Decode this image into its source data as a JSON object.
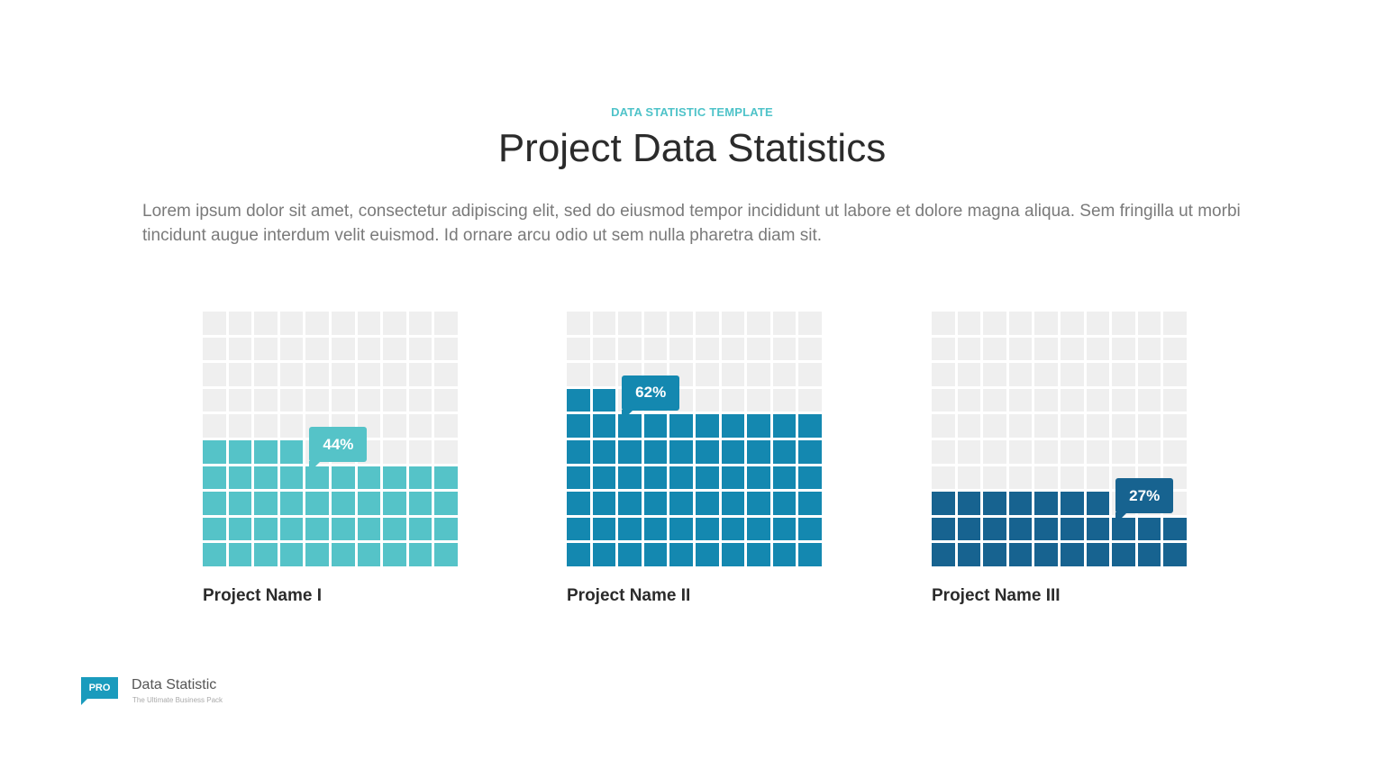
{
  "header": {
    "eyebrow": "DATA STATISTIC TEMPLATE",
    "title": "Project Data Statistics",
    "description": "Lorem ipsum dolor sit amet, consectetur adipiscing elit, sed do eiusmod tempor incididunt ut labore et dolore magna aliqua. Sem fringilla ut morbi tincidunt augue interdum velit euismod. Id ornare arcu odio ut sem nulla pharetra diam sit."
  },
  "chart_data": [
    {
      "type": "waffle",
      "name": "Project Name I",
      "value": 44,
      "label": "44%",
      "total": 100,
      "color": "#55c3c8"
    },
    {
      "type": "waffle",
      "name": "Project Name II",
      "value": 62,
      "label": "62%",
      "total": 100,
      "color": "#1488b0"
    },
    {
      "type": "waffle",
      "name": "Project Name III",
      "value": 27,
      "label": "27%",
      "total": 100,
      "color": "#176390"
    }
  ],
  "colors": {
    "empty_cell": "#efefef",
    "accent": "#4fc3c9"
  },
  "footer": {
    "badge": "PRO",
    "brand_name": "Data Statistic",
    "tagline": "The Ultimate Business Pack"
  }
}
